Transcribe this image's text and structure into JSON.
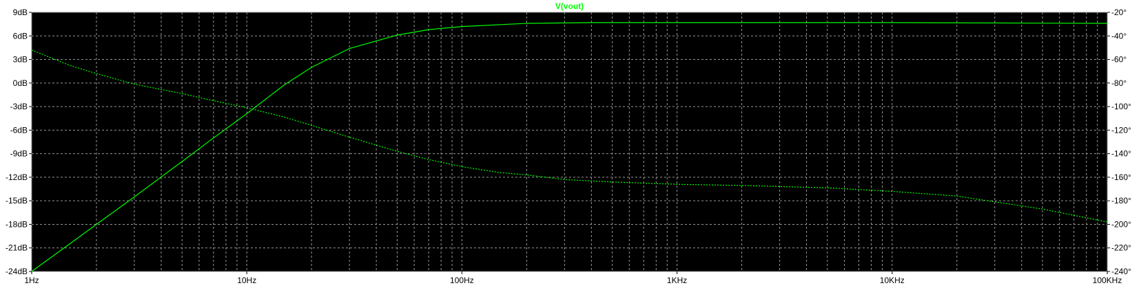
{
  "chart_data": {
    "type": "line",
    "title": "V(vout)",
    "x_scale": "log",
    "xlim": [
      1,
      100000
    ],
    "x_ticks": [
      {
        "value": 1,
        "label": "1Hz"
      },
      {
        "value": 10,
        "label": "10Hz"
      },
      {
        "value": 100,
        "label": "100Hz"
      },
      {
        "value": 1000,
        "label": "1KHz"
      },
      {
        "value": 10000,
        "label": "10KHz"
      },
      {
        "value": 100000,
        "label": "100KHz"
      }
    ],
    "y_left": {
      "unit": "dB",
      "ylim": [
        -24,
        9
      ],
      "ticks": [
        {
          "value": 9,
          "label": "9dB"
        },
        {
          "value": 6,
          "label": "6dB"
        },
        {
          "value": 3,
          "label": "3dB"
        },
        {
          "value": 0,
          "label": "0dB"
        },
        {
          "value": -3,
          "label": "-3dB"
        },
        {
          "value": -6,
          "label": "-6dB"
        },
        {
          "value": -9,
          "label": "-9dB"
        },
        {
          "value": -12,
          "label": "-12dB"
        },
        {
          "value": -15,
          "label": "-15dB"
        },
        {
          "value": -18,
          "label": "-18dB"
        },
        {
          "value": -21,
          "label": "-21dB"
        },
        {
          "value": -24,
          "label": "-24dB"
        }
      ]
    },
    "y_right": {
      "unit": "°",
      "ylim": [
        -240,
        -20
      ],
      "ticks": [
        {
          "value": -20,
          "label": "-20°"
        },
        {
          "value": -40,
          "label": "-40°"
        },
        {
          "value": -60,
          "label": "-60°"
        },
        {
          "value": -80,
          "label": "-80°"
        },
        {
          "value": -100,
          "label": "-100°"
        },
        {
          "value": -120,
          "label": "-120°"
        },
        {
          "value": -140,
          "label": "-140°"
        },
        {
          "value": -160,
          "label": "-160°"
        },
        {
          "value": -180,
          "label": "-180°"
        },
        {
          "value": -200,
          "label": "-200°"
        },
        {
          "value": -220,
          "label": "-220°"
        },
        {
          "value": -240,
          "label": "-240°"
        }
      ]
    },
    "grid": true,
    "series": [
      {
        "name": "V(vout)",
        "axis": "left",
        "style": "solid",
        "color": "#00ff00",
        "x": [
          1,
          1.5,
          2,
          3,
          5,
          7,
          10,
          15,
          20,
          30,
          50,
          70,
          100,
          200,
          400,
          1000,
          10000,
          100000
        ],
        "y": [
          -24.0,
          -20.5,
          -18.0,
          -14.5,
          -10.0,
          -7.0,
          -3.9,
          -0.2,
          2.0,
          4.4,
          6.1,
          6.8,
          7.2,
          7.6,
          7.7,
          7.7,
          7.7,
          7.6
        ]
      },
      {
        "name": "V(vout)",
        "axis": "right",
        "style": "dashed",
        "color": "#00ff00",
        "x": [
          1,
          1.5,
          2,
          3,
          5,
          7,
          10,
          15,
          20,
          30,
          50,
          70,
          100,
          150,
          200,
          300,
          500,
          1000,
          2000,
          5000,
          10000,
          20000,
          50000,
          100000
        ],
        "y": [
          -52,
          -65,
          -72,
          -81,
          -89,
          -95,
          -101,
          -109,
          -116,
          -126,
          -138,
          -145,
          -151,
          -156,
          -158,
          -162,
          -164,
          -166,
          -167,
          -169,
          -172,
          -176,
          -187,
          -198
        ]
      }
    ]
  },
  "colors": {
    "background": "#000000",
    "grid": "#9a9a9a",
    "trace": "#00ff00",
    "axis_text": "#000000"
  }
}
